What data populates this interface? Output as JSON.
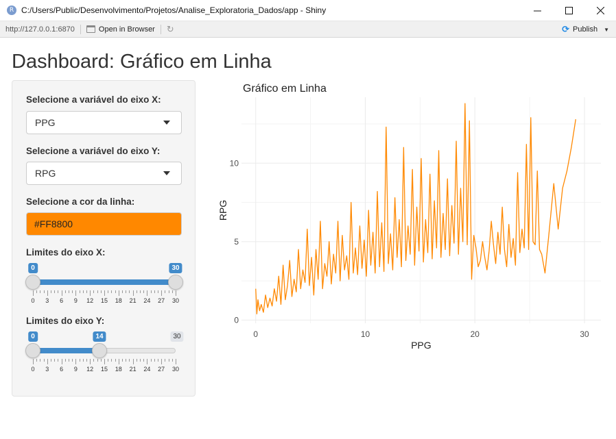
{
  "window": {
    "title": "C:/Users/Public/Desenvolvimento/Projetos/Analise_Exploratoria_Dados/app - Shiny",
    "app_icon": "R",
    "minimize_icon": "minimize-icon",
    "maximize_icon": "maximize-icon",
    "close_icon": "close-icon"
  },
  "toolbar": {
    "url": "http://127.0.0.1:6870",
    "open_in_browser": "Open in Browser",
    "publish": "Publish"
  },
  "page": {
    "title": "Dashboard: Gráfico em Linha"
  },
  "controls": {
    "x_var_label": "Selecione a variável do eixo X:",
    "x_var_value": "PPG",
    "y_var_label": "Selecione a variável do eixo Y:",
    "y_var_value": "RPG",
    "color_label": "Selecione a cor da linha:",
    "color_value": "#FF8800",
    "x_limits_label": "Limites do eixo X:",
    "x_limits": {
      "min": 0,
      "max": 30,
      "from": 0,
      "to": 30,
      "from_label": "0",
      "to_label": "30"
    },
    "y_limits_label": "Limites do eixo Y:",
    "y_limits": {
      "min": 0,
      "max": 30,
      "from": 0,
      "to": 14,
      "from_label": "0",
      "to_label": "14",
      "max_label": "30"
    },
    "tick_labels": [
      "0",
      "3",
      "6",
      "9",
      "12",
      "15",
      "18",
      "21",
      "24",
      "27",
      "30"
    ]
  },
  "chart_data": {
    "type": "line",
    "title": "Gráfico em Linha",
    "xlabel": "PPG",
    "ylabel": "RPG",
    "xlim": [
      -1.3,
      31.5
    ],
    "ylim": [
      -0.2,
      14.2
    ],
    "xticks": [
      0,
      10,
      20,
      30
    ],
    "yticks": [
      0,
      5,
      10
    ],
    "grid": true,
    "line_color": "#FF8800",
    "x": [
      0.0,
      0.1,
      0.2,
      0.35,
      0.5,
      0.7,
      0.9,
      1.1,
      1.3,
      1.5,
      1.7,
      1.9,
      2.1,
      2.3,
      2.5,
      2.7,
      2.9,
      3.1,
      3.3,
      3.5,
      3.7,
      3.9,
      4.1,
      4.3,
      4.5,
      4.7,
      4.9,
      5.1,
      5.3,
      5.5,
      5.7,
      5.9,
      6.1,
      6.3,
      6.5,
      6.7,
      6.9,
      7.1,
      7.3,
      7.5,
      7.7,
      7.9,
      8.1,
      8.3,
      8.5,
      8.7,
      8.9,
      9.1,
      9.3,
      9.5,
      9.7,
      9.9,
      10.1,
      10.3,
      10.5,
      10.7,
      10.9,
      11.1,
      11.3,
      11.5,
      11.7,
      11.9,
      12.1,
      12.3,
      12.5,
      12.7,
      12.9,
      13.1,
      13.3,
      13.5,
      13.7,
      13.9,
      14.1,
      14.3,
      14.5,
      14.7,
      14.9,
      15.1,
      15.3,
      15.5,
      15.7,
      15.9,
      16.1,
      16.3,
      16.5,
      16.7,
      16.9,
      17.1,
      17.3,
      17.5,
      17.7,
      17.9,
      18.1,
      18.3,
      18.5,
      18.7,
      18.9,
      19.1,
      19.3,
      19.5,
      19.7,
      19.9,
      20.1,
      20.3,
      20.5,
      20.7,
      20.9,
      21.1,
      21.3,
      21.5,
      21.7,
      21.9,
      22.1,
      22.3,
      22.5,
      22.7,
      22.9,
      23.1,
      23.3,
      23.5,
      23.7,
      23.9,
      24.1,
      24.3,
      24.5,
      24.7,
      24.9,
      25.1,
      25.3,
      25.5,
      25.7,
      25.9,
      26.1,
      26.4,
      26.8,
      27.2,
      27.6,
      28.0,
      28.4,
      28.8,
      29.2
    ],
    "y": [
      2.0,
      0.4,
      1.3,
      0.6,
      1.0,
      0.5,
      1.6,
      0.8,
      1.4,
      0.9,
      2.0,
      1.2,
      2.8,
      1.0,
      3.5,
      1.3,
      2.2,
      3.8,
      1.5,
      2.6,
      1.8,
      4.5,
      2.0,
      3.2,
      2.4,
      5.8,
      2.2,
      4.0,
      1.6,
      4.5,
      2.6,
      6.3,
      2.0,
      3.6,
      2.8,
      5.0,
      2.3,
      4.2,
      3.0,
      6.3,
      2.5,
      5.4,
      3.2,
      4.1,
      2.6,
      7.5,
      3.0,
      4.6,
      2.9,
      6.0,
      3.3,
      5.1,
      2.8,
      7.0,
      3.5,
      5.6,
      3.0,
      8.2,
      3.4,
      6.2,
      3.1,
      12.3,
      3.6,
      5.5,
      3.2,
      7.8,
      4.0,
      6.4,
      3.4,
      11.0,
      3.8,
      6.0,
      4.2,
      9.6,
      3.5,
      7.2,
      4.4,
      10.3,
      3.7,
      6.4,
      4.3,
      9.3,
      3.9,
      7.6,
      4.6,
      10.8,
      4.0,
      6.8,
      4.5,
      9.0,
      4.1,
      7.3,
      4.9,
      11.4,
      4.2,
      8.4,
      5.0,
      13.8,
      4.8,
      12.7,
      2.6,
      5.4,
      4.6,
      3.4,
      3.8,
      5.0,
      4.0,
      3.2,
      4.4,
      6.3,
      4.8,
      3.6,
      5.6,
      4.2,
      7.2,
      4.5,
      3.4,
      6.1,
      4.0,
      5.2,
      3.5,
      9.4,
      4.3,
      5.8,
      4.6,
      11.2,
      4.5,
      12.9,
      5.0,
      4.8,
      9.5,
      4.5,
      4.2,
      3.0,
      5.8,
      8.7,
      5.8,
      8.4,
      9.5,
      11.0,
      12.8
    ]
  }
}
